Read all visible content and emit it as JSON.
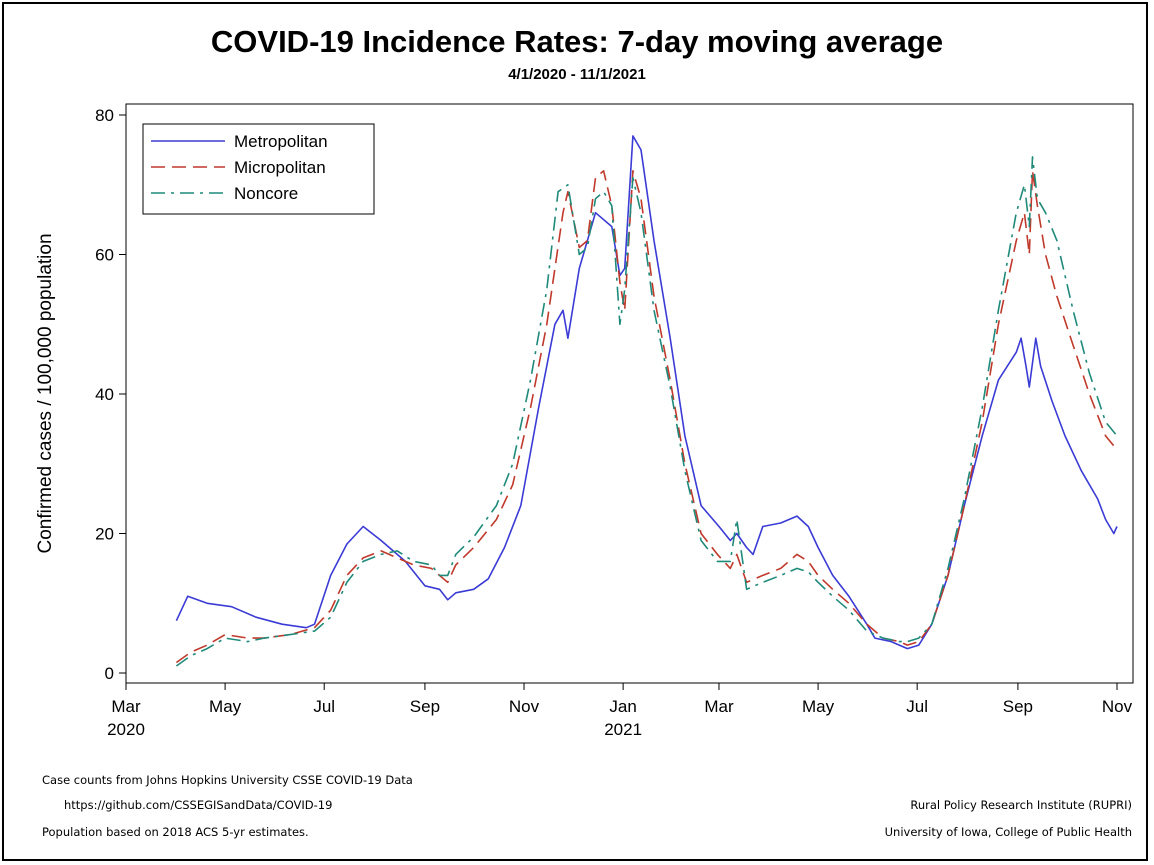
{
  "chart_data": {
    "type": "line",
    "title": "COVID-19 Incidence Rates: 7-day moving average",
    "subtitle": "4/1/2020 - 11/1/2021",
    "ylabel": "Confirmed cases / 100,000 population",
    "xlabel": "",
    "ylim": [
      0,
      80
    ],
    "yticks": [
      0,
      20,
      40,
      60,
      80
    ],
    "xlim": [
      "2020-03-01",
      "2021-11-01"
    ],
    "xticks": [
      {
        "date": "2020-03-01",
        "label": "Mar",
        "year": "2020"
      },
      {
        "date": "2020-05-01",
        "label": "May",
        "year": ""
      },
      {
        "date": "2020-07-01",
        "label": "Jul",
        "year": ""
      },
      {
        "date": "2020-09-01",
        "label": "Sep",
        "year": ""
      },
      {
        "date": "2020-11-01",
        "label": "Nov",
        "year": ""
      },
      {
        "date": "2021-01-01",
        "label": "Jan",
        "year": "2021"
      },
      {
        "date": "2021-03-01",
        "label": "Mar",
        "year": ""
      },
      {
        "date": "2021-05-01",
        "label": "May",
        "year": ""
      },
      {
        "date": "2021-07-01",
        "label": "Jul",
        "year": ""
      },
      {
        "date": "2021-09-01",
        "label": "Sep",
        "year": ""
      },
      {
        "date": "2021-11-01",
        "label": "Nov",
        "year": ""
      }
    ],
    "grid": false,
    "legend_position": "top-left",
    "series": [
      {
        "name": "Metropolitan",
        "color": "#3b3bd6",
        "dash": "solid",
        "points": [
          [
            "2020-04-01",
            7.5
          ],
          [
            "2020-04-08",
            11
          ],
          [
            "2020-04-20",
            10
          ],
          [
            "2020-05-05",
            9.5
          ],
          [
            "2020-05-20",
            8
          ],
          [
            "2020-06-05",
            7
          ],
          [
            "2020-06-20",
            6.5
          ],
          [
            "2020-06-25",
            7
          ],
          [
            "2020-07-05",
            14
          ],
          [
            "2020-07-15",
            18.5
          ],
          [
            "2020-07-25",
            21
          ],
          [
            "2020-08-05",
            19
          ],
          [
            "2020-08-20",
            16
          ],
          [
            "2020-09-01",
            12.5
          ],
          [
            "2020-09-10",
            12
          ],
          [
            "2020-09-15",
            10.5
          ],
          [
            "2020-09-20",
            11.5
          ],
          [
            "2020-10-01",
            12
          ],
          [
            "2020-10-10",
            13.5
          ],
          [
            "2020-10-20",
            18
          ],
          [
            "2020-10-30",
            24
          ],
          [
            "2020-11-10",
            38
          ],
          [
            "2020-11-20",
            50
          ],
          [
            "2020-11-25",
            52
          ],
          [
            "2020-11-28",
            48
          ],
          [
            "2020-12-05",
            58
          ],
          [
            "2020-12-15",
            66
          ],
          [
            "2020-12-25",
            64
          ],
          [
            "2020-12-30",
            57
          ],
          [
            "2021-01-02",
            58
          ],
          [
            "2021-01-07",
            77
          ],
          [
            "2021-01-12",
            75
          ],
          [
            "2021-01-20",
            62
          ],
          [
            "2021-01-30",
            48
          ],
          [
            "2021-02-08",
            34
          ],
          [
            "2021-02-18",
            24
          ],
          [
            "2021-03-01",
            21
          ],
          [
            "2021-03-08",
            19
          ],
          [
            "2021-03-12",
            20
          ],
          [
            "2021-03-18",
            18
          ],
          [
            "2021-03-22",
            17
          ],
          [
            "2021-03-28",
            21
          ],
          [
            "2021-04-08",
            21.5
          ],
          [
            "2021-04-18",
            22.5
          ],
          [
            "2021-04-25",
            21
          ],
          [
            "2021-05-01",
            18
          ],
          [
            "2021-05-10",
            14
          ],
          [
            "2021-05-20",
            11
          ],
          [
            "2021-05-31",
            7
          ],
          [
            "2021-06-05",
            5
          ],
          [
            "2021-06-15",
            4.5
          ],
          [
            "2021-06-25",
            3.5
          ],
          [
            "2021-07-02",
            4
          ],
          [
            "2021-07-10",
            7
          ],
          [
            "2021-07-20",
            14
          ],
          [
            "2021-07-30",
            24
          ],
          [
            "2021-08-10",
            34
          ],
          [
            "2021-08-20",
            42
          ],
          [
            "2021-08-31",
            46
          ],
          [
            "2021-09-03",
            48
          ],
          [
            "2021-09-06",
            44
          ],
          [
            "2021-09-08",
            41
          ],
          [
            "2021-09-12",
            48
          ],
          [
            "2021-09-15",
            44
          ],
          [
            "2021-09-22",
            39
          ],
          [
            "2021-09-30",
            34
          ],
          [
            "2021-10-10",
            29
          ],
          [
            "2021-10-20",
            25
          ],
          [
            "2021-10-25",
            22
          ],
          [
            "2021-10-30",
            20
          ],
          [
            "2021-11-01",
            21
          ]
        ]
      },
      {
        "name": "Micropolitan",
        "color": "#c0392b",
        "dash": "long-dash",
        "points": [
          [
            "2020-04-01",
            1.5
          ],
          [
            "2020-04-10",
            3
          ],
          [
            "2020-04-20",
            4
          ],
          [
            "2020-05-01",
            5.5
          ],
          [
            "2020-05-15",
            5
          ],
          [
            "2020-05-25",
            5
          ],
          [
            "2020-06-10",
            5.5
          ],
          [
            "2020-06-25",
            6.5
          ],
          [
            "2020-07-05",
            9
          ],
          [
            "2020-07-15",
            14
          ],
          [
            "2020-07-25",
            16.5
          ],
          [
            "2020-08-05",
            17.5
          ],
          [
            "2020-08-15",
            16.5
          ],
          [
            "2020-08-25",
            15.5
          ],
          [
            "2020-09-05",
            15
          ],
          [
            "2020-09-10",
            14
          ],
          [
            "2020-09-15",
            13
          ],
          [
            "2020-09-20",
            15.5
          ],
          [
            "2020-10-01",
            18
          ],
          [
            "2020-10-15",
            22
          ],
          [
            "2020-10-25",
            27
          ],
          [
            "2020-11-05",
            38
          ],
          [
            "2020-11-15",
            50
          ],
          [
            "2020-11-25",
            66
          ],
          [
            "2020-11-28",
            69
          ],
          [
            "2020-12-05",
            61
          ],
          [
            "2020-12-10",
            62
          ],
          [
            "2020-12-15",
            71
          ],
          [
            "2020-12-20",
            72
          ],
          [
            "2020-12-25",
            67
          ],
          [
            "2020-12-30",
            56
          ],
          [
            "2021-01-02",
            52
          ],
          [
            "2021-01-07",
            72
          ],
          [
            "2021-01-12",
            68
          ],
          [
            "2021-01-20",
            54
          ],
          [
            "2021-01-30",
            42
          ],
          [
            "2021-02-08",
            30
          ],
          [
            "2021-02-18",
            20
          ],
          [
            "2021-02-28",
            17
          ],
          [
            "2021-03-08",
            15
          ],
          [
            "2021-03-12",
            17
          ],
          [
            "2021-03-18",
            13
          ],
          [
            "2021-03-28",
            14
          ],
          [
            "2021-04-08",
            15
          ],
          [
            "2021-04-18",
            17
          ],
          [
            "2021-04-25",
            16
          ],
          [
            "2021-05-01",
            14
          ],
          [
            "2021-05-10",
            12
          ],
          [
            "2021-05-20",
            10
          ],
          [
            "2021-05-31",
            7
          ],
          [
            "2021-06-10",
            5
          ],
          [
            "2021-06-20",
            4.5
          ],
          [
            "2021-06-25",
            4
          ],
          [
            "2021-07-02",
            4.5
          ],
          [
            "2021-07-10",
            7
          ],
          [
            "2021-07-20",
            14
          ],
          [
            "2021-07-30",
            24
          ],
          [
            "2021-08-10",
            36
          ],
          [
            "2021-08-20",
            50
          ],
          [
            "2021-08-31",
            62
          ],
          [
            "2021-09-05",
            66
          ],
          [
            "2021-09-08",
            60
          ],
          [
            "2021-09-10",
            72
          ],
          [
            "2021-09-13",
            67
          ],
          [
            "2021-09-18",
            60
          ],
          [
            "2021-09-25",
            54
          ],
          [
            "2021-10-05",
            47
          ],
          [
            "2021-10-15",
            40
          ],
          [
            "2021-10-25",
            34
          ],
          [
            "2021-11-01",
            32
          ]
        ]
      },
      {
        "name": "Noncore",
        "color": "#1f8a7a",
        "dash": "dash-dot",
        "points": [
          [
            "2020-04-01",
            1
          ],
          [
            "2020-04-10",
            2.5
          ],
          [
            "2020-04-20",
            3.5
          ],
          [
            "2020-05-01",
            5
          ],
          [
            "2020-05-15",
            4.5
          ],
          [
            "2020-05-25",
            5
          ],
          [
            "2020-06-10",
            5.5
          ],
          [
            "2020-06-25",
            6
          ],
          [
            "2020-07-05",
            8
          ],
          [
            "2020-07-15",
            13
          ],
          [
            "2020-07-25",
            16
          ],
          [
            "2020-08-05",
            17
          ],
          [
            "2020-08-15",
            17.5
          ],
          [
            "2020-08-25",
            16
          ],
          [
            "2020-09-05",
            15.5
          ],
          [
            "2020-09-10",
            14
          ],
          [
            "2020-09-15",
            14
          ],
          [
            "2020-09-20",
            17
          ],
          [
            "2020-10-01",
            19.5
          ],
          [
            "2020-10-15",
            24
          ],
          [
            "2020-10-25",
            30
          ],
          [
            "2020-11-05",
            42
          ],
          [
            "2020-11-15",
            55
          ],
          [
            "2020-11-22",
            69
          ],
          [
            "2020-11-28",
            70
          ],
          [
            "2020-12-05",
            60
          ],
          [
            "2020-12-10",
            61
          ],
          [
            "2020-12-15",
            68
          ],
          [
            "2020-12-20",
            69
          ],
          [
            "2020-12-25",
            67
          ],
          [
            "2020-12-30",
            50
          ],
          [
            "2021-01-02",
            55
          ],
          [
            "2021-01-07",
            71
          ],
          [
            "2021-01-12",
            66
          ],
          [
            "2021-01-20",
            52
          ],
          [
            "2021-01-30",
            41
          ],
          [
            "2021-02-08",
            29
          ],
          [
            "2021-02-18",
            19
          ],
          [
            "2021-02-28",
            16
          ],
          [
            "2021-03-08",
            16
          ],
          [
            "2021-03-12",
            22
          ],
          [
            "2021-03-18",
            12
          ],
          [
            "2021-03-28",
            13
          ],
          [
            "2021-04-08",
            14
          ],
          [
            "2021-04-18",
            15
          ],
          [
            "2021-04-25",
            14.5
          ],
          [
            "2021-05-01",
            13
          ],
          [
            "2021-05-10",
            11
          ],
          [
            "2021-05-20",
            9
          ],
          [
            "2021-05-31",
            6
          ],
          [
            "2021-06-10",
            5
          ],
          [
            "2021-06-20",
            4.5
          ],
          [
            "2021-06-25",
            4.5
          ],
          [
            "2021-07-02",
            5
          ],
          [
            "2021-07-10",
            7
          ],
          [
            "2021-07-20",
            15
          ],
          [
            "2021-07-30",
            25
          ],
          [
            "2021-08-10",
            38
          ],
          [
            "2021-08-20",
            52
          ],
          [
            "2021-08-31",
            66
          ],
          [
            "2021-09-05",
            70
          ],
          [
            "2021-09-08",
            64
          ],
          [
            "2021-09-10",
            74
          ],
          [
            "2021-09-13",
            68
          ],
          [
            "2021-09-18",
            66
          ],
          [
            "2021-09-25",
            62
          ],
          [
            "2021-10-05",
            52
          ],
          [
            "2021-10-15",
            43
          ],
          [
            "2021-10-25",
            36
          ],
          [
            "2021-11-01",
            34
          ]
        ]
      }
    ]
  },
  "footer": {
    "source_line1": "Case counts from Johns Hopkins University CSSE COVID-19 Data",
    "source_line2": "https://github.com/CSSEGISandData/COVID-19",
    "population_note": "Population based on 2018 ACS 5-yr estimates.",
    "org_line1": "Rural Policy Research Institute (RUPRI)",
    "org_line2": "University of Iowa, College of Public Health"
  }
}
